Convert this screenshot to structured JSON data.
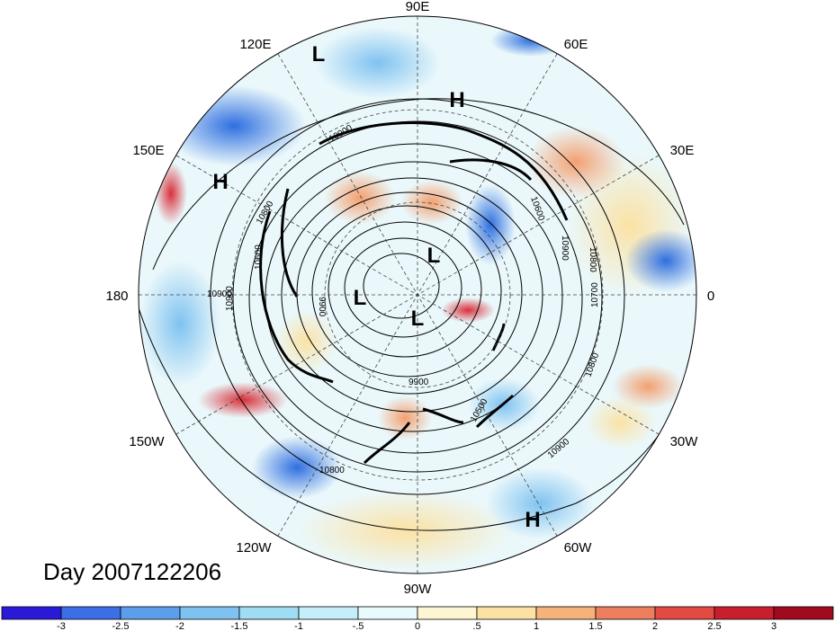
{
  "map": {
    "date_label": "Day 2007122206",
    "longitude_labels": [
      {
        "text": "90E",
        "lon": 90
      },
      {
        "text": "60E",
        "lon": 60
      },
      {
        "text": "30E",
        "lon": 30
      },
      {
        "text": "0",
        "lon": 0
      },
      {
        "text": "30W",
        "lon": -30
      },
      {
        "text": "60W",
        "lon": -60
      },
      {
        "text": "90W",
        "lon": -90
      },
      {
        "text": "120W",
        "lon": -120
      },
      {
        "text": "150W",
        "lon": -150
      },
      {
        "text": "180",
        "lon": 180
      },
      {
        "text": "150E",
        "lon": 150
      },
      {
        "text": "120E",
        "lon": 120
      }
    ],
    "pressure_centers": [
      {
        "type": "L",
        "name": "low-siberia-coast"
      },
      {
        "type": "H",
        "name": "high-central-asia"
      },
      {
        "type": "H",
        "name": "high-north-pacific"
      },
      {
        "type": "L",
        "name": "low-arctic-east"
      },
      {
        "type": "L",
        "name": "low-arctic-west"
      },
      {
        "type": "L",
        "name": "low-north-pole"
      },
      {
        "type": "H",
        "name": "high-atlantic"
      }
    ],
    "contour_labels": [
      "10900",
      "10800",
      "10900",
      "9900",
      "10600",
      "10900",
      "10800",
      "10700",
      "10800",
      "10900",
      "10600",
      "10500",
      "9900",
      "10800",
      "10900"
    ],
    "colors": {
      "strong_negative": "#1010c8",
      "negative": "#4a8fe0",
      "weak_negative": "#a8e6f5",
      "neutral": "#ffffff",
      "weak_positive": "#fbe7a9",
      "positive": "#f0806a",
      "strong_positive": "#b01020"
    }
  },
  "colorbar": {
    "tick_labels": [
      "-3",
      "-2.5",
      "-2",
      "-1.5",
      "-1",
      "-.5",
      "0",
      ".5",
      "1",
      "1.5",
      "2",
      "2.5",
      "3"
    ],
    "bins": [
      "#2a1ad8",
      "#3c6ee6",
      "#5d9eeb",
      "#7fc2f0",
      "#a0dcf4",
      "#c4eefa",
      "#e9fafd",
      "#fdf6d2",
      "#fbe2a4",
      "#f5b27a",
      "#ee7f5e",
      "#e24a42",
      "#c81e2e",
      "#a00a1e"
    ]
  }
}
